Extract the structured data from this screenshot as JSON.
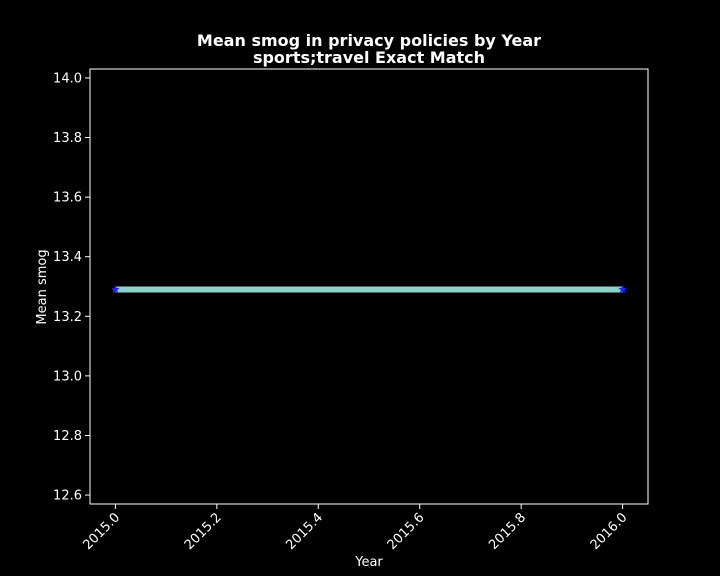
{
  "chart_data": {
    "type": "line",
    "title": "Mean smog in privacy policies by Year",
    "subtitle": "sports;travel Exact Match",
    "xlabel": "Year",
    "ylabel": "Mean smog",
    "xlim": [
      2014.95,
      2016.05
    ],
    "ylim": [
      12.57,
      14.03
    ],
    "xticks": [
      2015.0,
      2015.2,
      2015.4,
      2015.6,
      2015.8,
      2016.0
    ],
    "xtick_labels": [
      "2015.0",
      "2015.2",
      "2015.4",
      "2015.6",
      "2015.8",
      "2016.0"
    ],
    "yticks": [
      12.6,
      12.8,
      13.0,
      13.2,
      13.4,
      13.6,
      13.8,
      14.0
    ],
    "ytick_labels": [
      "12.6",
      "12.8",
      "13.0",
      "13.2",
      "13.4",
      "13.6",
      "13.8",
      "14.0"
    ],
    "grid": false,
    "series": [
      {
        "x": [
          2015.0,
          2016.0
        ],
        "y": [
          13.29,
          13.29
        ],
        "line_color": "#8dd3c7",
        "marker": "star",
        "marker_color": "#1f1fff"
      }
    ],
    "colors": {
      "background": "#000000",
      "axes": "#ffffff",
      "text": "#ffffff"
    }
  }
}
